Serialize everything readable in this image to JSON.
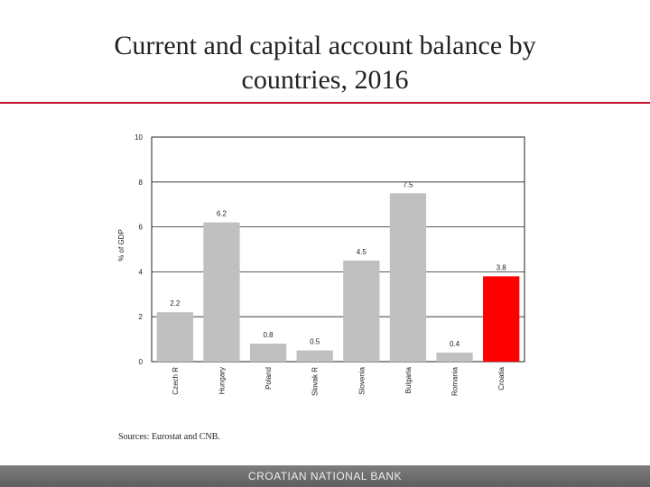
{
  "slide": {
    "title_line1": "Current and capital account balance by",
    "title_line2": "countries, 2016",
    "source": "Sources: Eurostat and CNB.",
    "footer": "CROATIAN NATIONAL BANK"
  },
  "colors": {
    "bar_default": "#c0c0c0",
    "bar_highlight": "#ff0000",
    "title_rule": "#c0102a"
  },
  "chart_data": {
    "type": "bar",
    "title": "",
    "xlabel": "",
    "ylabel": "% of GDP",
    "ylim": [
      0,
      10
    ],
    "yticks": [
      0,
      2,
      4,
      6,
      8,
      10
    ],
    "grid": true,
    "categories": [
      "Czech R",
      "Hungary",
      "Poland",
      "Slovak R",
      "Slovenia",
      "Bulgaria",
      "Romania",
      "Croatia"
    ],
    "values": [
      2.2,
      6.2,
      0.8,
      0.5,
      4.5,
      7.5,
      0.4,
      3.8
    ],
    "data_labels": [
      "2.2",
      "6.2",
      "0.8",
      "0.5",
      "4.5",
      "7.5",
      "0.4",
      "3.8"
    ],
    "highlight_category": "Croatia"
  }
}
